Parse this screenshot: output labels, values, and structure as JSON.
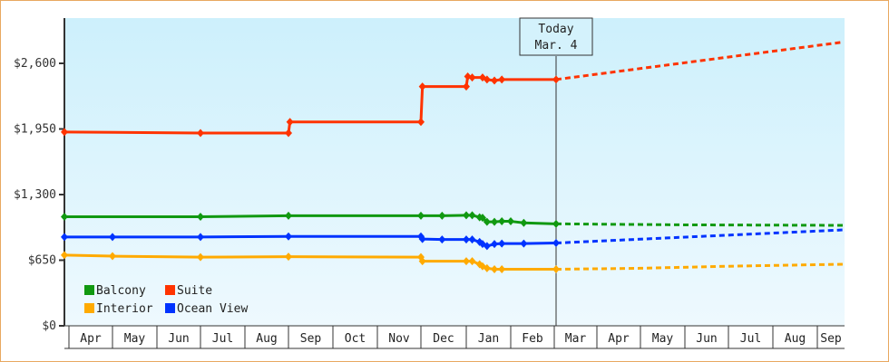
{
  "chart_data": {
    "type": "line",
    "title": "",
    "xlabel": "",
    "ylabel": "",
    "ylim": [
      0,
      2925
    ],
    "y_ticks": [
      {
        "value": 0,
        "label": "$0"
      },
      {
        "value": 650,
        "label": "$650"
      },
      {
        "value": 1300,
        "label": "$1,300"
      },
      {
        "value": 1950,
        "label": "$1,950"
      },
      {
        "value": 2600,
        "label": "$2,600"
      }
    ],
    "x_tick_labels": [
      "Apr",
      "May",
      "Jun",
      "Jul",
      "Aug",
      "Sep",
      "Oct",
      "Nov",
      "Dec",
      "Jan",
      "Feb",
      "Mar",
      "Apr",
      "May",
      "Jun",
      "Jul",
      "Aug",
      "Sep"
    ],
    "grid": false,
    "legend_position": "lower-left",
    "annotation": {
      "line1": "Today",
      "line2": "Mar. 4"
    },
    "series": [
      {
        "name": "Balcony",
        "color": "#119911",
        "history": [
          [
            "Apr 1",
            1080
          ],
          [
            "Jul 1",
            1080
          ],
          [
            "Sep 1",
            1090
          ],
          [
            "Dec 1",
            1090
          ],
          [
            "Dec 15",
            1090
          ],
          [
            "Jan 1",
            1095
          ],
          [
            "Jan 5",
            1095
          ],
          [
            "Jan 10",
            1075
          ],
          [
            "Jan 12",
            1070
          ],
          [
            "Jan 15",
            1030
          ],
          [
            "Jan 20",
            1030
          ],
          [
            "Jan 25",
            1035
          ],
          [
            "Feb 1",
            1035
          ],
          [
            "Feb 10",
            1020
          ],
          [
            "Mar 4",
            1010
          ]
        ],
        "forecast": [
          [
            "Mar 4",
            1010
          ],
          [
            "Jun 1",
            1000
          ],
          [
            "Sep 30",
            995
          ]
        ]
      },
      {
        "name": "Suite",
        "color": "#ff3300",
        "history": [
          [
            "Apr 1",
            1920
          ],
          [
            "Jul 1",
            1910
          ],
          [
            "Sep 1",
            1910
          ],
          [
            "Sep 2",
            2020
          ],
          [
            "Dec 1",
            2020
          ],
          [
            "Dec 2",
            2370
          ],
          [
            "Jan 1",
            2370
          ],
          [
            "Jan 2",
            2470
          ],
          [
            "Jan 5",
            2460
          ],
          [
            "Jan 12",
            2460
          ],
          [
            "Jan 15",
            2440
          ],
          [
            "Jan 20",
            2430
          ],
          [
            "Jan 25",
            2440
          ],
          [
            "Mar 4",
            2440
          ]
        ],
        "forecast": [
          [
            "Mar 4",
            2440
          ],
          [
            "Sep 30",
            2810
          ]
        ]
      },
      {
        "name": "Interior",
        "color": "#ffaa00",
        "history": [
          [
            "Apr 1",
            700
          ],
          [
            "May 1",
            690
          ],
          [
            "Jul 1",
            680
          ],
          [
            "Sep 1",
            685
          ],
          [
            "Dec 1",
            680
          ],
          [
            "Dec 2",
            640
          ],
          [
            "Jan 1",
            640
          ],
          [
            "Jan 5",
            640
          ],
          [
            "Jan 10",
            610
          ],
          [
            "Jan 12",
            590
          ],
          [
            "Jan 15",
            570
          ],
          [
            "Jan 20",
            560
          ],
          [
            "Jan 25",
            560
          ],
          [
            "Mar 4",
            560
          ]
        ],
        "forecast": [
          [
            "Mar 4",
            560
          ],
          [
            "May 1",
            570
          ],
          [
            "Jul 1",
            590
          ],
          [
            "Sep 30",
            610
          ]
        ]
      },
      {
        "name": "Ocean View",
        "color": "#0033ff",
        "history": [
          [
            "Apr 1",
            880
          ],
          [
            "May 1",
            880
          ],
          [
            "Jul 1",
            880
          ],
          [
            "Sep 1",
            885
          ],
          [
            "Dec 1",
            885
          ],
          [
            "Dec 2",
            860
          ],
          [
            "Dec 15",
            855
          ],
          [
            "Jan 1",
            855
          ],
          [
            "Jan 5",
            855
          ],
          [
            "Jan 10",
            830
          ],
          [
            "Jan 12",
            810
          ],
          [
            "Jan 15",
            790
          ],
          [
            "Jan 20",
            810
          ],
          [
            "Jan 25",
            815
          ],
          [
            "Feb 10",
            815
          ],
          [
            "Mar 4",
            820
          ]
        ],
        "forecast": [
          [
            "Mar 4",
            820
          ],
          [
            "Sep 30",
            950
          ]
        ]
      }
    ]
  }
}
